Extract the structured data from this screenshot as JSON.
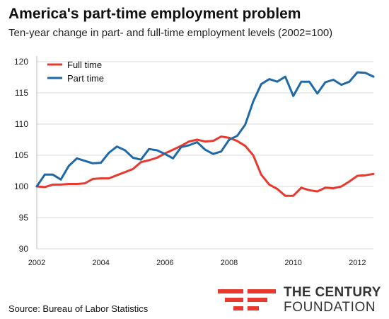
{
  "title": "America's part-time employment problem",
  "subtitle": "Ten-year change in part- and full-time employment levels (2002=100)",
  "source": "Source: Bureau of Labor Statistics",
  "logo": {
    "line1": "THE CENTURY",
    "line2": "FOUNDATION"
  },
  "chart_data": {
    "type": "line",
    "title": "America's part-time employment problem",
    "subtitle": "Ten-year change in part- and full-time employment levels (2002=100)",
    "xlabel": "",
    "ylabel": "",
    "xlim": [
      2002,
      2012.5
    ],
    "ylim": [
      90,
      120
    ],
    "xticks": [
      2002,
      2004,
      2006,
      2008,
      2010,
      2012
    ],
    "yticks": [
      90,
      95,
      100,
      105,
      110,
      115,
      120
    ],
    "grid": "horizontal",
    "legend": "top-left",
    "series": [
      {
        "name": "Full time",
        "color": "#e8392f",
        "x": [
          2002.0,
          2002.25,
          2002.5,
          2002.75,
          2003.0,
          2003.25,
          2003.5,
          2003.75,
          2004.0,
          2004.25,
          2004.5,
          2004.75,
          2005.0,
          2005.25,
          2005.5,
          2005.75,
          2006.0,
          2006.25,
          2006.5,
          2006.75,
          2007.0,
          2007.25,
          2007.5,
          2007.75,
          2008.0,
          2008.25,
          2008.5,
          2008.75,
          2009.0,
          2009.25,
          2009.5,
          2009.75,
          2010.0,
          2010.25,
          2010.5,
          2010.75,
          2011.0,
          2011.25,
          2011.5,
          2011.75,
          2012.0,
          2012.25,
          2012.5
        ],
        "values": [
          100.0,
          99.9,
          100.3,
          100.3,
          100.4,
          100.4,
          100.5,
          101.2,
          101.3,
          101.3,
          101.8,
          102.3,
          102.8,
          103.9,
          104.2,
          104.6,
          105.3,
          105.9,
          106.5,
          107.2,
          107.5,
          107.2,
          107.3,
          108.0,
          107.8,
          107.3,
          106.5,
          105.0,
          101.9,
          100.3,
          99.6,
          98.5,
          98.5,
          99.8,
          99.4,
          99.2,
          99.8,
          99.7,
          100.0,
          100.8,
          101.7,
          101.8,
          102.0
        ]
      },
      {
        "name": "Part time",
        "color": "#1f6aa6",
        "x": [
          2002.0,
          2002.25,
          2002.5,
          2002.75,
          2003.0,
          2003.25,
          2003.5,
          2003.75,
          2004.0,
          2004.25,
          2004.5,
          2004.75,
          2005.0,
          2005.25,
          2005.5,
          2005.75,
          2006.0,
          2006.25,
          2006.5,
          2006.75,
          2007.0,
          2007.25,
          2007.5,
          2007.75,
          2008.0,
          2008.25,
          2008.5,
          2008.75,
          2009.0,
          2009.25,
          2009.5,
          2009.75,
          2010.0,
          2010.25,
          2010.5,
          2010.75,
          2011.0,
          2011.25,
          2011.5,
          2011.75,
          2012.0,
          2012.25,
          2012.5
        ],
        "values": [
          100.0,
          101.9,
          101.9,
          101.1,
          103.3,
          104.5,
          104.1,
          103.7,
          103.8,
          105.4,
          106.4,
          105.8,
          104.6,
          104.3,
          106.0,
          105.8,
          105.2,
          104.5,
          106.3,
          106.6,
          107.1,
          105.9,
          105.2,
          105.6,
          107.5,
          108.1,
          109.9,
          113.6,
          116.4,
          117.2,
          116.8,
          117.6,
          114.5,
          116.8,
          116.8,
          114.9,
          116.7,
          117.1,
          116.3,
          116.8,
          118.3,
          118.2,
          117.6
        ]
      }
    ]
  }
}
